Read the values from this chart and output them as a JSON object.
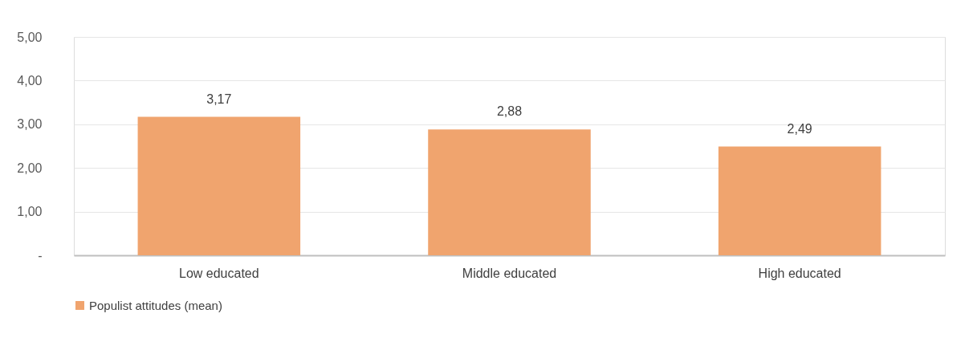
{
  "chart_data": {
    "type": "bar",
    "categories": [
      "Low educated",
      "Middle educated",
      "High educated"
    ],
    "series": [
      {
        "name": "Populist attitudes (mean)",
        "color": "#f0a46e",
        "values": [
          3.17,
          2.88,
          2.49
        ],
        "value_labels": [
          "3,17",
          "2,88",
          "2,49"
        ]
      }
    ],
    "ylim": [
      0,
      5
    ],
    "yticks": [
      {
        "value": 0,
        "label": "-"
      },
      {
        "value": 1,
        "label": "1,00"
      },
      {
        "value": 2,
        "label": "2,00"
      },
      {
        "value": 3,
        "label": "3,00"
      },
      {
        "value": 4,
        "label": "4,00"
      },
      {
        "value": 5,
        "label": "5,00"
      }
    ],
    "grid": "y",
    "legend": "bottom"
  }
}
